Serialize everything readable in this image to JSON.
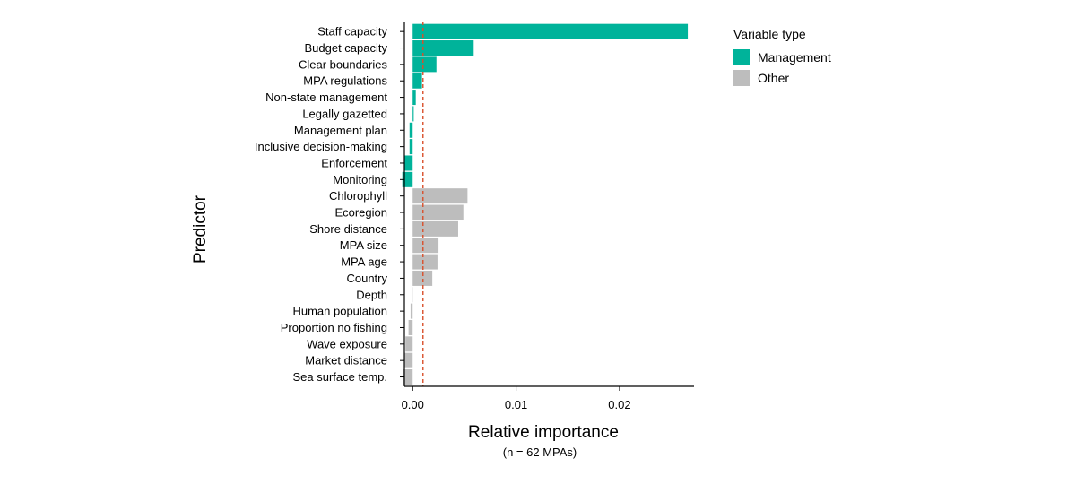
{
  "chart_data": {
    "type": "bar",
    "orientation": "horizontal",
    "ylabel": "Predictor",
    "xlabel": "Relative importance",
    "xlabel_sub": "(n = 62 MPAs)",
    "xlim": [
      -0.0008,
      0.0272
    ],
    "xticks": [
      {
        "value": 0.0,
        "label": "0.00"
      },
      {
        "value": 0.01,
        "label": "0.01"
      },
      {
        "value": 0.02,
        "label": "0.02"
      }
    ],
    "reference_line": {
      "value": 0.001,
      "color": "#d94f2b"
    },
    "legend": {
      "title": "Variable type",
      "position": "right",
      "entries": [
        {
          "name": "Management",
          "color": "#00b39a"
        },
        {
          "name": "Other",
          "color": "#bdbdbd"
        }
      ]
    },
    "categories": [
      "Staff capacity",
      "Budget capacity",
      "Clear boundaries",
      "MPA regulations",
      "Non-state management",
      "Legally gazetted",
      "Management plan",
      "Inclusive decision-making",
      "Enforcement",
      "Monitoring",
      "Chlorophyll",
      "Ecoregion",
      "Shore distance",
      "MPA size",
      "MPA age",
      "Country",
      "Depth",
      "Human population",
      "Proportion no fishing",
      "Wave exposure",
      "Market distance",
      "Sea surface temp."
    ],
    "values": [
      0.0266,
      0.0059,
      0.0023,
      0.0009,
      0.0003,
      0.0001,
      -0.0003,
      -0.0003,
      -0.0008,
      -0.001,
      0.0053,
      0.0049,
      0.0044,
      0.0025,
      0.0024,
      0.0019,
      -0.0001,
      -0.0002,
      -0.0004,
      -0.0007,
      -0.0008,
      -0.0009
    ],
    "groups": [
      "Management",
      "Management",
      "Management",
      "Management",
      "Management",
      "Management",
      "Management",
      "Management",
      "Management",
      "Management",
      "Other",
      "Other",
      "Other",
      "Other",
      "Other",
      "Other",
      "Other",
      "Other",
      "Other",
      "Other",
      "Other",
      "Other"
    ]
  }
}
